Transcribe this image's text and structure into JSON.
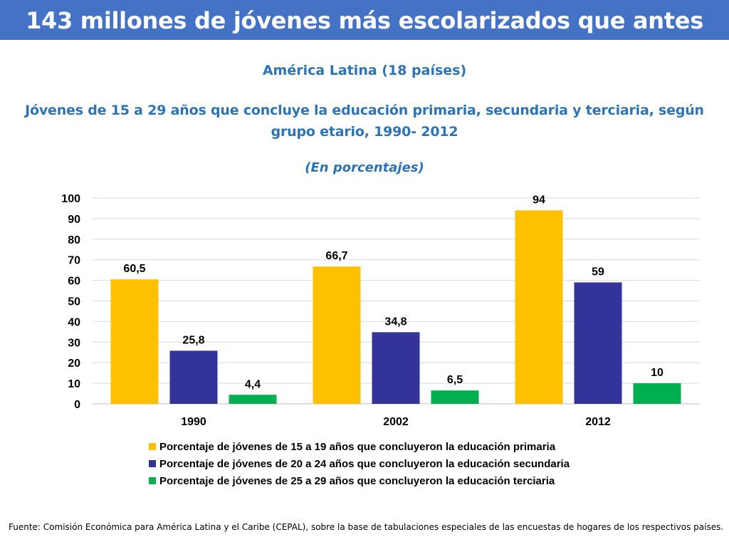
{
  "header": {
    "title": "143 millones de jóvenes más escolarizados que antes",
    "region": "América Latina (18 países)",
    "subtitle": "Jóvenes de 15 a 29 años que concluye la educación primaria, secundaria y terciaria, según grupo etario, 1990- 2012",
    "units_note": "(En porcentajes)"
  },
  "colors": {
    "banner": "#4472c4",
    "subtitle_text": "#2e74b5"
  },
  "chart_data": {
    "type": "bar",
    "categories": [
      "1990",
      "2002",
      "2012"
    ],
    "series": [
      {
        "name": "Porcentaje de jóvenes de 15 a 19 años que concluyeron la educación primaria",
        "color": "#ffc000",
        "values": [
          60.5,
          66.7,
          94
        ],
        "labels": [
          "60,5",
          "66,7",
          "94"
        ]
      },
      {
        "name": "Porcentaje de jóvenes de 20 a 24 años que concluyeron la educación secundaria",
        "color": "#333399",
        "values": [
          25.8,
          34.8,
          59
        ],
        "labels": [
          "25,8",
          "34,8",
          "59"
        ]
      },
      {
        "name": "Porcentaje de jóvenes de 25 a 29 años que concluyeron la educación terciaria",
        "color": "#00b050",
        "values": [
          4.4,
          6.5,
          10
        ],
        "labels": [
          "4,4",
          "6,5",
          "10"
        ]
      }
    ],
    "ylim": [
      0,
      100
    ],
    "yticks": [
      0,
      10,
      20,
      30,
      40,
      50,
      60,
      70,
      80,
      90,
      100
    ],
    "grid": true,
    "legend": "bottom"
  },
  "footer": {
    "source": "Fuente: Comisión Económica para América Latina y el Caribe (CEPAL), sobre la base de tabulaciones especiales de las encuestas de hogares de los respectivos países."
  }
}
